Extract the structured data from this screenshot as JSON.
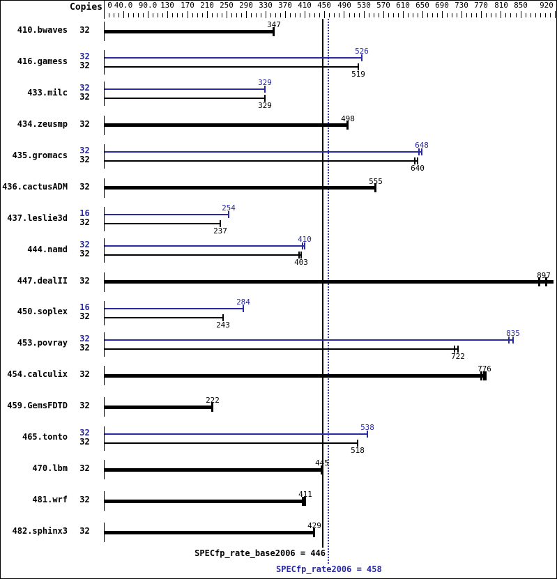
{
  "header": {
    "copies_label": "Copies"
  },
  "colors": {
    "bar_base": "#000000",
    "bar_peak": "#2929a3",
    "peak_line": "#3333cc",
    "base_line": "#000000"
  },
  "summary": {
    "base": {
      "label": "SPECfp_rate_base2006 = 446",
      "value": 446
    },
    "peak": {
      "label": "SPECfp_rate2006 = 458",
      "value": 458
    }
  },
  "chart_data": {
    "type": "bar",
    "orientation": "horizontal",
    "title": "",
    "xlabel": "",
    "ylabel": "",
    "xlim": [
      0,
      920
    ],
    "grid": false,
    "legend": null,
    "axis_ticks": [
      {
        "label": "0",
        "value": 0
      },
      {
        "label": "40.0",
        "value": 40
      },
      {
        "label": "90.0",
        "value": 90
      },
      {
        "label": "130",
        "value": 130
      },
      {
        "label": "170",
        "value": 170
      },
      {
        "label": "210",
        "value": 210
      },
      {
        "label": "250",
        "value": 250
      },
      {
        "label": "290",
        "value": 290
      },
      {
        "label": "330",
        "value": 330
      },
      {
        "label": "370",
        "value": 370
      },
      {
        "label": "410",
        "value": 410
      },
      {
        "label": "450",
        "value": 450
      },
      {
        "label": "490",
        "value": 490
      },
      {
        "label": "530",
        "value": 530
      },
      {
        "label": "570",
        "value": 570
      },
      {
        "label": "610",
        "value": 610
      },
      {
        "label": "650",
        "value": 650
      },
      {
        "label": "690",
        "value": 690
      },
      {
        "label": "730",
        "value": 730
      },
      {
        "label": "770",
        "value": 770
      },
      {
        "label": "810",
        "value": 810
      },
      {
        "label": "850",
        "value": 850
      },
      {
        "label": "920",
        "value": 920
      }
    ],
    "minor_tick_step": 10,
    "reference_lines": [
      {
        "name": "base_mean",
        "value": 446
      },
      {
        "name": "peak_mean",
        "value": 458
      }
    ],
    "benchmarks": [
      {
        "name": "410.bwaves",
        "bars": [
          {
            "type": "base",
            "copies": "32",
            "value": 347,
            "label": "347",
            "thick": true,
            "label_pos": "above"
          }
        ]
      },
      {
        "name": "416.gamess",
        "bars": [
          {
            "type": "peak",
            "copies": "32",
            "value": 526,
            "label": "526",
            "thick": false,
            "label_pos": "above"
          },
          {
            "type": "base",
            "copies": "32",
            "value": 519,
            "label": "519",
            "thick": false,
            "label_pos": "below"
          }
        ]
      },
      {
        "name": "433.milc",
        "bars": [
          {
            "type": "peak",
            "copies": "32",
            "value": 329,
            "label": "329",
            "thick": false,
            "label_pos": "above"
          },
          {
            "type": "base",
            "copies": "32",
            "value": 329,
            "label": "329",
            "thick": false,
            "label_pos": "below"
          }
        ]
      },
      {
        "name": "434.zeusmp",
        "bars": [
          {
            "type": "base",
            "copies": "32",
            "value": 498,
            "label": "498",
            "thick": true,
            "label_pos": "above"
          }
        ]
      },
      {
        "name": "435.gromacs",
        "bars": [
          {
            "type": "peak",
            "copies": "32",
            "value": 648,
            "label": "648",
            "thick": false,
            "label_pos": "above",
            "run_ticks": [
              643,
              648
            ]
          },
          {
            "type": "base",
            "copies": "32",
            "value": 640,
            "label": "640",
            "thick": false,
            "label_pos": "below",
            "run_ticks": [
              635,
              640
            ]
          }
        ]
      },
      {
        "name": "436.cactusADM",
        "bars": [
          {
            "type": "base",
            "copies": "32",
            "value": 555,
            "label": "555",
            "thick": true,
            "label_pos": "above"
          }
        ]
      },
      {
        "name": "437.leslie3d",
        "bars": [
          {
            "type": "peak",
            "copies": "16",
            "value": 254,
            "label": "254",
            "thick": false,
            "label_pos": "above"
          },
          {
            "type": "base",
            "copies": "32",
            "value": 237,
            "label": "237",
            "thick": false,
            "label_pos": "below"
          }
        ]
      },
      {
        "name": "444.namd",
        "bars": [
          {
            "type": "peak",
            "copies": "32",
            "value": 410,
            "label": "410",
            "thick": false,
            "label_pos": "above",
            "run_ticks": [
              406,
              410
            ]
          },
          {
            "type": "base",
            "copies": "32",
            "value": 403,
            "label": "403",
            "thick": false,
            "label_pos": "below",
            "run_ticks": [
              399,
              403
            ]
          }
        ]
      },
      {
        "name": "447.dealII",
        "bars": [
          {
            "type": "base",
            "copies": "32",
            "value": 897,
            "label": "897",
            "thick": true,
            "label_pos": "above",
            "run_ticks": [
              889,
              903
            ],
            "bar_to": 918,
            "end_tick": false
          }
        ]
      },
      {
        "name": "450.soplex",
        "bars": [
          {
            "type": "peak",
            "copies": "16",
            "value": 284,
            "label": "284",
            "thick": false,
            "label_pos": "above"
          },
          {
            "type": "base",
            "copies": "32",
            "value": 243,
            "label": "243",
            "thick": false,
            "label_pos": "below"
          }
        ]
      },
      {
        "name": "453.povray",
        "bars": [
          {
            "type": "peak",
            "copies": "32",
            "value": 835,
            "label": "835",
            "thick": false,
            "label_pos": "above",
            "run_ticks": [
              827,
              835
            ]
          },
          {
            "type": "base",
            "copies": "32",
            "value": 722,
            "label": "722",
            "thick": false,
            "label_pos": "below",
            "run_ticks": [
              716,
              722
            ]
          }
        ]
      },
      {
        "name": "454.calculix",
        "bars": [
          {
            "type": "base",
            "copies": "32",
            "value": 776,
            "label": "776",
            "thick": true,
            "label_pos": "above",
            "run_ticks": [
              771,
              776,
              780
            ]
          }
        ]
      },
      {
        "name": "459.GemsFDTD",
        "bars": [
          {
            "type": "base",
            "copies": "32",
            "value": 222,
            "label": "222",
            "thick": true,
            "label_pos": "above"
          }
        ]
      },
      {
        "name": "465.tonto",
        "bars": [
          {
            "type": "peak",
            "copies": "32",
            "value": 538,
            "label": "538",
            "thick": false,
            "label_pos": "above"
          },
          {
            "type": "base",
            "copies": "32",
            "value": 518,
            "label": "518",
            "thick": false,
            "label_pos": "below"
          }
        ]
      },
      {
        "name": "470.lbm",
        "bars": [
          {
            "type": "base",
            "copies": "32",
            "value": 445,
            "label": "445",
            "thick": true,
            "label_pos": "above"
          }
        ]
      },
      {
        "name": "481.wrf",
        "bars": [
          {
            "type": "base",
            "copies": "32",
            "value": 411,
            "label": "411",
            "thick": true,
            "label_pos": "above",
            "run_ticks": [
              407,
              411
            ]
          }
        ]
      },
      {
        "name": "482.sphinx3",
        "bars": [
          {
            "type": "base",
            "copies": "32",
            "value": 429,
            "label": "429",
            "thick": true,
            "label_pos": "above"
          }
        ]
      }
    ]
  }
}
